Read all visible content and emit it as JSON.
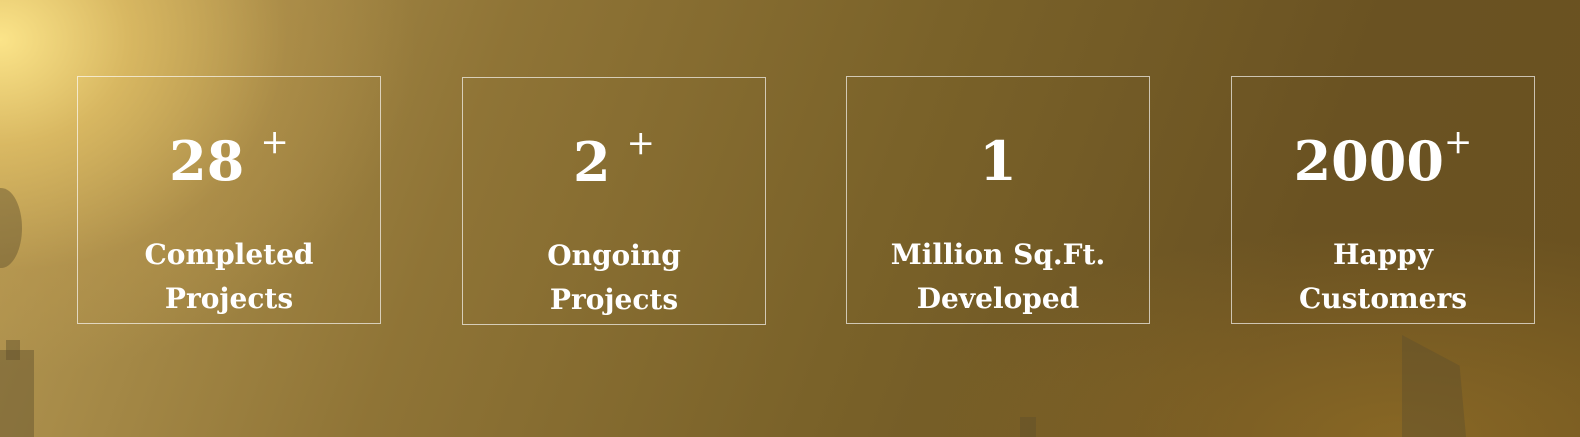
{
  "stats": [
    {
      "value": "28",
      "suffix": "+",
      "label_line1": "Completed",
      "label_line2": "Projects"
    },
    {
      "value": "2",
      "suffix": "+",
      "label_line1": "Ongoing",
      "label_line2": "Projects"
    },
    {
      "value": "1",
      "suffix": "",
      "label_line1": "Million Sq.Ft.",
      "label_line2": "Developed"
    },
    {
      "value": "2000",
      "suffix": "+",
      "label_line1": "Happy",
      "label_line2": "Customers"
    }
  ],
  "colors": {
    "text": "#ffffff",
    "border": "#e8dcc0",
    "gold_light": "#ffe88c",
    "gold_dark": "#6a5222"
  }
}
